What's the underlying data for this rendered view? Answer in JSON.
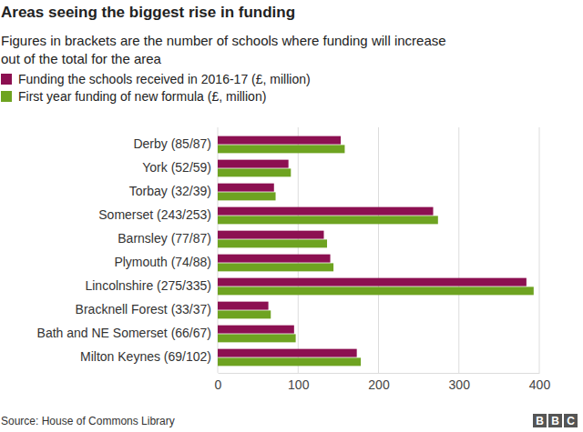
{
  "chart_data": {
    "type": "bar",
    "orientation": "horizontal",
    "title": "Areas seeing the biggest rise in funding",
    "subtitle": [
      "Figures in brackets are the number of schools where funding will increase",
      "out of the total for the area"
    ],
    "source": "Source: House of Commons Library",
    "logo": "BBC",
    "categories": [
      "Derby (85/87)",
      "York (52/59)",
      "Torbay (32/39)",
      "Somerset (243/253)",
      "Barnsley (77/87)",
      "Plymouth (74/88)",
      "Lincolnshire (275/335)",
      "Bracknell Forest (33/37)",
      "Bath and NE Somerset (66/67)",
      "Milton Keynes (69/102)"
    ],
    "series": [
      {
        "name": "Funding the schools received in 2016-17 (£, million)",
        "color": "#8c1051",
        "values": [
          153,
          88,
          70,
          268,
          132,
          140,
          384,
          63,
          95,
          173
        ]
      },
      {
        "name": "First year funding of new formula (£, million)",
        "color": "#6ea321",
        "values": [
          158,
          91,
          72,
          274,
          136,
          144,
          393,
          66,
          97,
          178
        ]
      }
    ],
    "xlim": [
      0,
      400
    ],
    "xticks": [
      0,
      100,
      200,
      300,
      400
    ],
    "grid": true,
    "legend": "top-left"
  }
}
